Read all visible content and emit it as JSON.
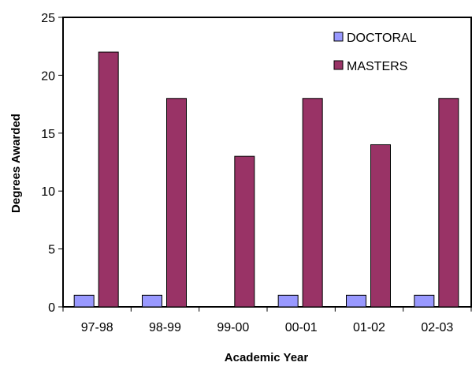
{
  "chart_data": {
    "type": "bar",
    "title": "",
    "xlabel": "Academic Year",
    "ylabel": "Degrees Awarded",
    "categories": [
      "97-98",
      "98-99",
      "99-00",
      "00-01",
      "01-02",
      "02-03"
    ],
    "series": [
      {
        "name": "DOCTORAL",
        "values": [
          1,
          1,
          0,
          1,
          1,
          1
        ]
      },
      {
        "name": "MASTERS",
        "values": [
          22,
          18,
          13,
          18,
          14,
          18
        ]
      }
    ],
    "ylim": [
      0,
      25
    ],
    "yticks": [
      "0",
      "5",
      "10",
      "15",
      "20",
      "25"
    ],
    "grid": false,
    "legend": "top-right",
    "colors": {
      "DOCTORAL": "#9999ff",
      "MASTERS": "#993366"
    }
  }
}
